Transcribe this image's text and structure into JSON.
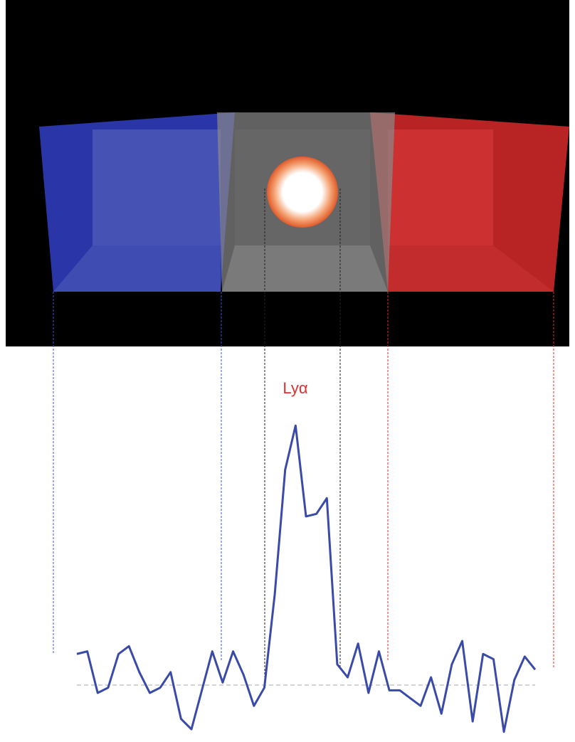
{
  "label": "Lyα",
  "spectrum": {
    "type": "line",
    "color": "#3a4aa8",
    "x": [
      0,
      1,
      2,
      3,
      4,
      5,
      6,
      7,
      8,
      9,
      10,
      11,
      12,
      13,
      14,
      15,
      16,
      17,
      18,
      19,
      20,
      21,
      22,
      23,
      24,
      25,
      26,
      27,
      28,
      29,
      30,
      31,
      32,
      33,
      34,
      35,
      36,
      37,
      38,
      39,
      40,
      41,
      42,
      43,
      44
    ],
    "values": [
      0.12,
      0.13,
      -0.03,
      -0.01,
      0.12,
      0.15,
      0.05,
      -0.03,
      -0.01,
      0.05,
      -0.13,
      -0.17,
      -0.02,
      0.13,
      0.01,
      0.13,
      0.04,
      -0.08,
      -0.01,
      0.35,
      0.83,
      1.0,
      0.65,
      0.66,
      0.72,
      0.08,
      0.03,
      0.16,
      -0.03,
      0.13,
      -0.02,
      -0.02,
      -0.05,
      -0.08,
      0.03,
      -0.11,
      0.08,
      0.17,
      -0.14,
      0.12,
      0.1,
      -0.18,
      0.02,
      0.11,
      0.06
    ],
    "xlim": [
      0,
      44
    ],
    "ylim": [
      -0.2,
      1.05
    ]
  }
}
